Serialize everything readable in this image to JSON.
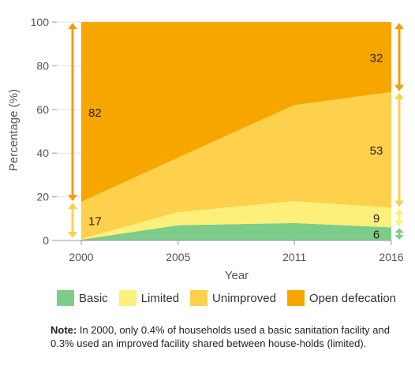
{
  "chart_data": {
    "type": "area",
    "stacked": true,
    "x": [
      2000,
      2005,
      2011,
      2016
    ],
    "series": [
      {
        "name": "Basic",
        "color": "#7dcc8a",
        "values": [
          0.4,
          7,
          8,
          6
        ]
      },
      {
        "name": "Limited",
        "color": "#fdf07a",
        "values": [
          0.3,
          6,
          10,
          9
        ]
      },
      {
        "name": "Unimproved",
        "color": "#fdd14b",
        "values": [
          17,
          25,
          44,
          53
        ]
      },
      {
        "name": "Open defecation",
        "color": "#f7a600",
        "values": [
          82.3,
          62,
          38,
          32
        ]
      }
    ],
    "xlabel": "Year",
    "ylabel": "Percentage (%)",
    "ylim": [
      0,
      100
    ],
    "yticks": [
      0,
      20,
      40,
      60,
      80,
      100
    ],
    "xticks": [
      "2000",
      "2005",
      "2011",
      "2016"
    ],
    "grid": true,
    "data_labels": [
      {
        "text": "82",
        "year": 2000,
        "series": "Open defecation"
      },
      {
        "text": "17",
        "year": 2000,
        "series": "Unimproved"
      },
      {
        "text": "32",
        "year": 2016,
        "series": "Open defecation"
      },
      {
        "text": "53",
        "year": 2016,
        "series": "Unimproved"
      },
      {
        "text": "9",
        "year": 2016,
        "series": "Limited"
      },
      {
        "text": "6",
        "year": 2016,
        "series": "Basic"
      }
    ],
    "legend_position": "bottom"
  },
  "note": {
    "label": "Note:",
    "text": " In 2000, only 0.4% of households used a basic sanitation facility and 0.3% used an improved facility shared between house-holds (limited)."
  }
}
